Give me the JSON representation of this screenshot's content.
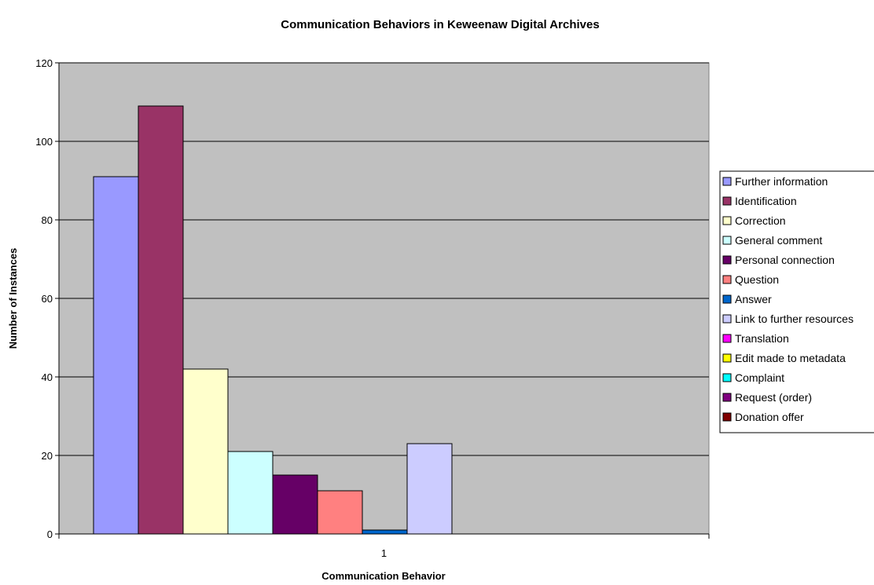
{
  "chart_data": {
    "type": "bar",
    "title": "Communication Behaviors in Keweenaw Digital Archives",
    "xlabel": "Communication Behavior",
    "ylabel": "Number of Instances",
    "categories": [
      "1"
    ],
    "ylim": [
      0,
      120
    ],
    "yticks": [
      0,
      20,
      40,
      60,
      80,
      100,
      120
    ],
    "grid": true,
    "legend_position": "right",
    "plot_background": "#C0C0C0",
    "series": [
      {
        "name": "Further information",
        "values": [
          91
        ],
        "color": "#9999FF"
      },
      {
        "name": "Identification",
        "values": [
          109
        ],
        "color": "#993366"
      },
      {
        "name": "Correction",
        "values": [
          42
        ],
        "color": "#FFFFCC"
      },
      {
        "name": "General comment",
        "values": [
          21
        ],
        "color": "#CCFFFF"
      },
      {
        "name": "Personal connection",
        "values": [
          15
        ],
        "color": "#660066"
      },
      {
        "name": "Question",
        "values": [
          11
        ],
        "color": "#FF8080"
      },
      {
        "name": "Answer",
        "values": [
          1
        ],
        "color": "#0066CC"
      },
      {
        "name": "Link to further resources",
        "values": [
          23
        ],
        "color": "#CCCCFF"
      },
      {
        "name": "Translation",
        "values": [
          0
        ],
        "color": "#FF00FF"
      },
      {
        "name": "Edit made to metadata",
        "values": [
          0
        ],
        "color": "#FFFF00"
      },
      {
        "name": "Complaint",
        "values": [
          0
        ],
        "color": "#00FFFF"
      },
      {
        "name": "Request (order)",
        "values": [
          0
        ],
        "color": "#800080"
      },
      {
        "name": "Donation offer",
        "values": [
          0
        ],
        "color": "#800000"
      }
    ]
  }
}
